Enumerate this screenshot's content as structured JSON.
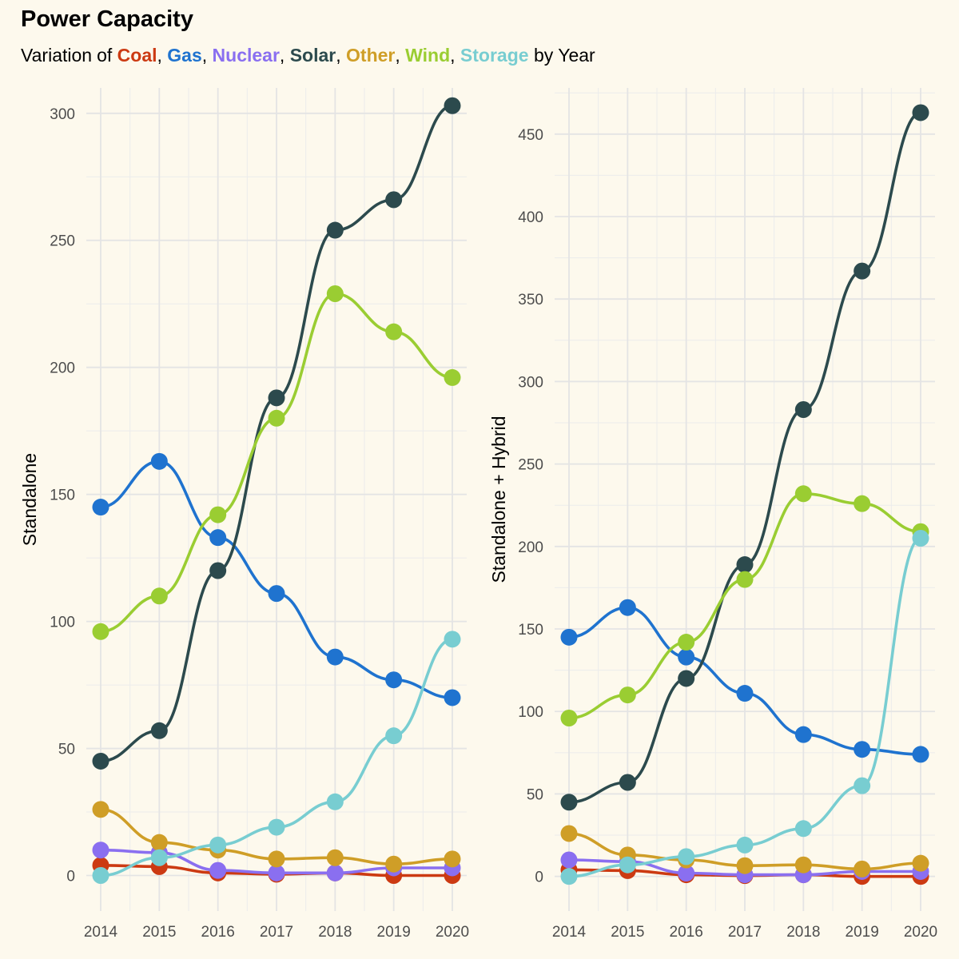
{
  "title": "Power Capacity",
  "subtitle": {
    "prefix": "Variation",
    "of": "of",
    "suffix": "by Year",
    "items": [
      {
        "name": "Coal",
        "color": "#cc3a12",
        "sep": ","
      },
      {
        "name": "Gas",
        "color": "#1f73cf",
        "sep": ","
      },
      {
        "name": "Nuclear",
        "color": "#8a6ff0",
        "sep": ","
      },
      {
        "name": "Solar",
        "color": "#2c4a4d",
        "sep": ","
      },
      {
        "name": "Other",
        "color": "#cf9e27",
        "sep": ","
      },
      {
        "name": "Wind",
        "color": "#9acd32",
        "sep": ","
      },
      {
        "name": "Storage",
        "color": "#78cdd1",
        "sep": ""
      }
    ]
  },
  "chart_data": [
    {
      "type": "line",
      "ylabel": "Standalone",
      "xlabel": "",
      "x": [
        2014,
        2015,
        2016,
        2017,
        2018,
        2019,
        2020
      ],
      "xticks": [
        "2014",
        "2015",
        "2016",
        "2017",
        "2018",
        "2019",
        "2020"
      ],
      "ylim": [
        -14,
        310
      ],
      "yticks": [
        0,
        50,
        100,
        150,
        200,
        250,
        300
      ],
      "grid": true,
      "series": [
        {
          "name": "Coal",
          "color": "#cc3a12",
          "values": [
            4,
            3.5,
            1,
            0.5,
            1,
            0,
            0
          ]
        },
        {
          "name": "Gas",
          "color": "#1f73cf",
          "values": [
            145,
            163,
            133,
            111,
            86,
            77,
            70
          ]
        },
        {
          "name": "Nuclear",
          "color": "#8a6ff0",
          "values": [
            10,
            9,
            2,
            1,
            1,
            3,
            3
          ]
        },
        {
          "name": "Solar",
          "color": "#2c4a4d",
          "values": [
            45,
            57,
            120,
            188,
            254,
            266,
            303
          ]
        },
        {
          "name": "Other",
          "color": "#cf9e27",
          "values": [
            26,
            13,
            10,
            6.5,
            7,
            4.5,
            6.5
          ]
        },
        {
          "name": "Wind",
          "color": "#9acd32",
          "values": [
            96,
            110,
            142,
            180,
            229,
            214,
            196
          ]
        },
        {
          "name": "Storage",
          "color": "#78cdd1",
          "values": [
            0,
            7,
            12,
            19,
            29,
            55,
            93
          ]
        }
      ]
    },
    {
      "type": "line",
      "ylabel": "Standalone + Hybrid",
      "xlabel": "",
      "x": [
        2014,
        2015,
        2016,
        2017,
        2018,
        2019,
        2020
      ],
      "xticks": [
        "2014",
        "2015",
        "2016",
        "2017",
        "2018",
        "2019",
        "2020"
      ],
      "ylim": [
        -21,
        478
      ],
      "yticks": [
        0,
        50,
        100,
        150,
        200,
        250,
        300,
        350,
        400,
        450
      ],
      "grid": true,
      "series": [
        {
          "name": "Coal",
          "color": "#cc3a12",
          "values": [
            4,
            3.5,
            1,
            0.5,
            1,
            0,
            0
          ]
        },
        {
          "name": "Gas",
          "color": "#1f73cf",
          "values": [
            145,
            163,
            133,
            111,
            86,
            77,
            74
          ]
        },
        {
          "name": "Nuclear",
          "color": "#8a6ff0",
          "values": [
            10,
            9,
            2,
            1,
            1,
            3,
            3
          ]
        },
        {
          "name": "Solar",
          "color": "#2c4a4d",
          "values": [
            45,
            57,
            120,
            189,
            283,
            367,
            463
          ]
        },
        {
          "name": "Other",
          "color": "#cf9e27",
          "values": [
            26,
            13,
            10,
            6.5,
            7,
            4.5,
            8
          ]
        },
        {
          "name": "Wind",
          "color": "#9acd32",
          "values": [
            96,
            110,
            142,
            180,
            232,
            226,
            209
          ]
        },
        {
          "name": "Storage",
          "color": "#78cdd1",
          "values": [
            0,
            7,
            12,
            19,
            29,
            55,
            205
          ]
        }
      ]
    }
  ]
}
